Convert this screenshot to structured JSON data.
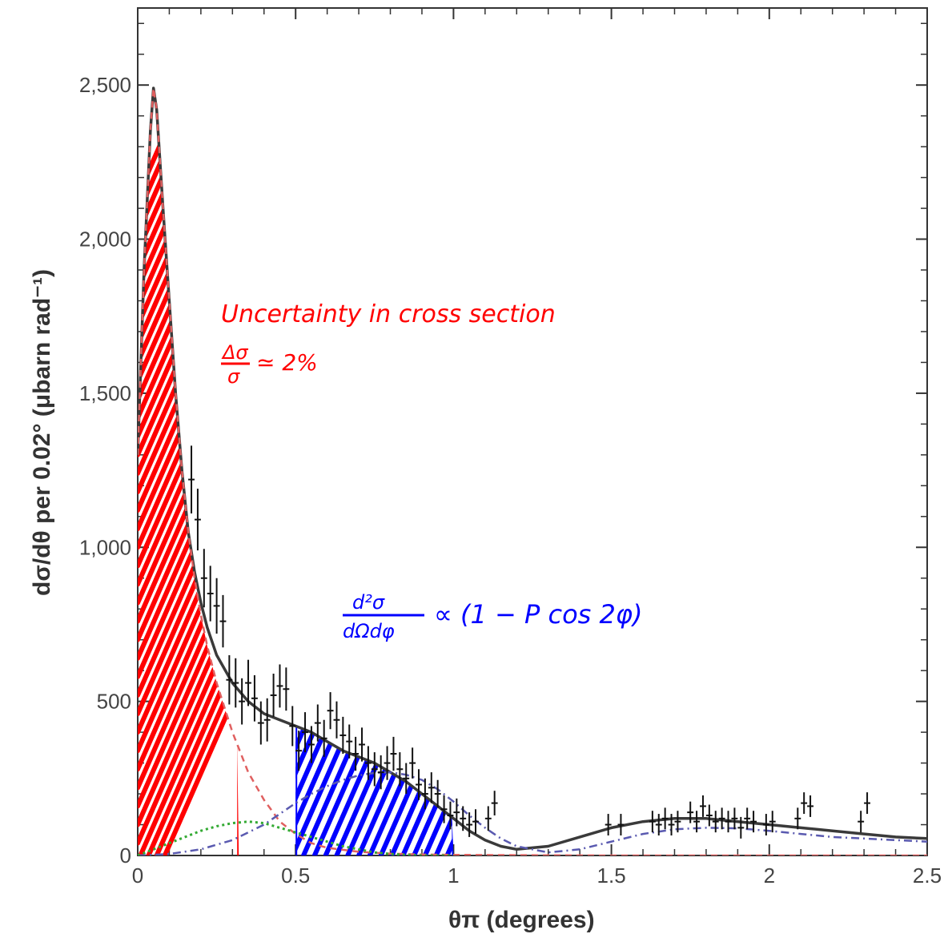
{
  "chart_data": {
    "type": "scatter",
    "title": "",
    "xlabel": "θπ (degrees)",
    "ylabel": "dσ/dθ per 0.02° (μbarn rad⁻¹)",
    "xlim": [
      0,
      2.5
    ],
    "ylim": [
      0,
      2750
    ],
    "xticks": [
      0,
      0.5,
      1,
      1.5,
      2,
      2.5
    ],
    "xtick_labels": [
      "0",
      "0.5",
      "1",
      "1.5",
      "2",
      "2.5"
    ],
    "yticks": [
      0,
      500,
      1000,
      1500,
      2000,
      2500
    ],
    "ytick_labels": [
      "0",
      "500",
      "1,000",
      "1,500",
      "2,000",
      "2,500"
    ],
    "grid": false,
    "colors": {
      "data": "#111111",
      "total": "#3a3a3a",
      "primakoff": "#e06060",
      "coherent": "#5a5ab0",
      "interference": "#33aa33",
      "annotation_red": "#ff0000",
      "annotation_blue": "#0000ff"
    },
    "series": [
      {
        "type": "errorbar",
        "points": [
          [
            0.17,
            1220,
            110
          ],
          [
            0.19,
            1090,
            100
          ],
          [
            0.21,
            900,
            95
          ],
          [
            0.23,
            850,
            90
          ],
          [
            0.25,
            810,
            90
          ],
          [
            0.27,
            760,
            85
          ],
          [
            0.29,
            570,
            80
          ],
          [
            0.31,
            560,
            80
          ],
          [
            0.33,
            500,
            75
          ],
          [
            0.35,
            560,
            75
          ],
          [
            0.37,
            510,
            75
          ],
          [
            0.39,
            430,
            70
          ],
          [
            0.41,
            440,
            70
          ],
          [
            0.43,
            520,
            70
          ],
          [
            0.45,
            550,
            70
          ],
          [
            0.47,
            540,
            70
          ],
          [
            0.49,
            420,
            65
          ],
          [
            0.51,
            340,
            65
          ],
          [
            0.53,
            400,
            65
          ],
          [
            0.55,
            360,
            60
          ],
          [
            0.57,
            430,
            60
          ],
          [
            0.59,
            380,
            60
          ],
          [
            0.61,
            470,
            60
          ],
          [
            0.63,
            440,
            60
          ],
          [
            0.65,
            390,
            60
          ],
          [
            0.67,
            370,
            55
          ],
          [
            0.69,
            330,
            55
          ],
          [
            0.71,
            360,
            55
          ],
          [
            0.73,
            300,
            55
          ],
          [
            0.75,
            280,
            55
          ],
          [
            0.77,
            270,
            55
          ],
          [
            0.79,
            300,
            55
          ],
          [
            0.81,
            330,
            55
          ],
          [
            0.83,
            280,
            55
          ],
          [
            0.85,
            250,
            50
          ],
          [
            0.87,
            300,
            50
          ],
          [
            0.89,
            230,
            50
          ],
          [
            0.91,
            200,
            50
          ],
          [
            0.93,
            220,
            50
          ],
          [
            0.95,
            200,
            45
          ],
          [
            0.97,
            150,
            45
          ],
          [
            0.99,
            130,
            45
          ],
          [
            1.01,
            140,
            45
          ],
          [
            1.03,
            120,
            40
          ],
          [
            1.05,
            100,
            40
          ],
          [
            1.07,
            110,
            40
          ],
          [
            1.11,
            120,
            40
          ],
          [
            1.13,
            170,
            40
          ],
          [
            1.49,
            100,
            35
          ],
          [
            1.53,
            100,
            35
          ],
          [
            1.63,
            110,
            35
          ],
          [
            1.65,
            100,
            35
          ],
          [
            1.67,
            120,
            35
          ],
          [
            1.69,
            100,
            35
          ],
          [
            1.71,
            110,
            35
          ],
          [
            1.75,
            140,
            35
          ],
          [
            1.77,
            110,
            35
          ],
          [
            1.79,
            160,
            35
          ],
          [
            1.81,
            130,
            35
          ],
          [
            1.83,
            110,
            35
          ],
          [
            1.85,
            120,
            35
          ],
          [
            1.87,
            110,
            35
          ],
          [
            1.89,
            120,
            35
          ],
          [
            1.91,
            90,
            35
          ],
          [
            1.93,
            120,
            35
          ],
          [
            1.95,
            110,
            35
          ],
          [
            1.99,
            100,
            35
          ],
          [
            2.01,
            110,
            35
          ],
          [
            2.09,
            120,
            35
          ],
          [
            2.11,
            170,
            35
          ],
          [
            2.13,
            160,
            35
          ],
          [
            2.29,
            110,
            35
          ],
          [
            2.31,
            170,
            35
          ]
        ]
      },
      {
        "type": "line",
        "style": "solid",
        "x": [
          0,
          0.02,
          0.04,
          0.05,
          0.06,
          0.08,
          0.1,
          0.12,
          0.14,
          0.16,
          0.18,
          0.2,
          0.22,
          0.25,
          0.3,
          0.35,
          0.4,
          0.45,
          0.5,
          0.55,
          0.6,
          0.65,
          0.7,
          0.75,
          0.8,
          0.85,
          0.9,
          0.95,
          1,
          1.05,
          1.1,
          1.15,
          1.2,
          1.3,
          1.4,
          1.5,
          1.6,
          1.7,
          1.8,
          1.9,
          2,
          2.1,
          2.2,
          2.3,
          2.4,
          2.5
        ],
        "y": [
          1300,
          1900,
          2350,
          2490,
          2420,
          2100,
          1800,
          1500,
          1250,
          1050,
          920,
          820,
          740,
          650,
          560,
          500,
          460,
          440,
          420,
          400,
          370,
          340,
          320,
          300,
          270,
          240,
          200,
          160,
          120,
          80,
          50,
          30,
          20,
          30,
          60,
          90,
          110,
          120,
          120,
          110,
          100,
          90,
          80,
          70,
          60,
          55
        ]
      },
      {
        "type": "line",
        "style": "dashed",
        "x": [
          0,
          0.02,
          0.04,
          0.05,
          0.06,
          0.08,
          0.1,
          0.12,
          0.14,
          0.16,
          0.18,
          0.2,
          0.22,
          0.25,
          0.3,
          0.35,
          0.4,
          0.45,
          0.5,
          0.55,
          0.6,
          0.7,
          0.8,
          0.9,
          1,
          1.2,
          1.5,
          2,
          2.5
        ],
        "y": [
          1300,
          1900,
          2350,
          2490,
          2420,
          2100,
          1800,
          1500,
          1250,
          1050,
          900,
          780,
          680,
          560,
          400,
          270,
          180,
          110,
          70,
          40,
          25,
          12,
          6,
          3,
          2,
          1,
          0,
          0,
          0
        ]
      },
      {
        "type": "line",
        "style": "dash-dot",
        "x": [
          0,
          0.1,
          0.2,
          0.3,
          0.4,
          0.5,
          0.55,
          0.6,
          0.65,
          0.7,
          0.75,
          0.8,
          0.85,
          0.9,
          0.95,
          1,
          1.05,
          1.1,
          1.15,
          1.2,
          1.3,
          1.4,
          1.5,
          1.6,
          1.7,
          1.8,
          1.9,
          2,
          2.1,
          2.2,
          2.3,
          2.4,
          2.5
        ],
        "y": [
          0,
          5,
          20,
          50,
          100,
          170,
          200,
          225,
          245,
          260,
          268,
          270,
          262,
          245,
          215,
          175,
          130,
          90,
          55,
          30,
          10,
          20,
          45,
          70,
          85,
          90,
          88,
          80,
          70,
          60,
          55,
          50,
          45
        ]
      },
      {
        "type": "line",
        "style": "dotted",
        "x": [
          0,
          0.05,
          0.1,
          0.15,
          0.2,
          0.25,
          0.3,
          0.35,
          0.4,
          0.45,
          0.5,
          0.55,
          0.6,
          0.65,
          0.7,
          0.75,
          0.8,
          0.85,
          0.9,
          0.95,
          1
        ],
        "y": [
          0,
          20,
          40,
          60,
          80,
          95,
          105,
          110,
          105,
          90,
          75,
          60,
          45,
          30,
          20,
          10,
          5,
          2,
          0,
          0,
          0
        ]
      }
    ],
    "annotations": {
      "uncertainty_line1": "Uncertainty in cross section",
      "uncertainty_frac_num": "Δσ",
      "uncertainty_frac_den": "σ",
      "uncertainty_rest": "≃ 2%",
      "formula_num": "d²σ",
      "formula_den": "dΩdφ",
      "formula_rest": "∝ (1 − P cos 2φ)"
    }
  }
}
